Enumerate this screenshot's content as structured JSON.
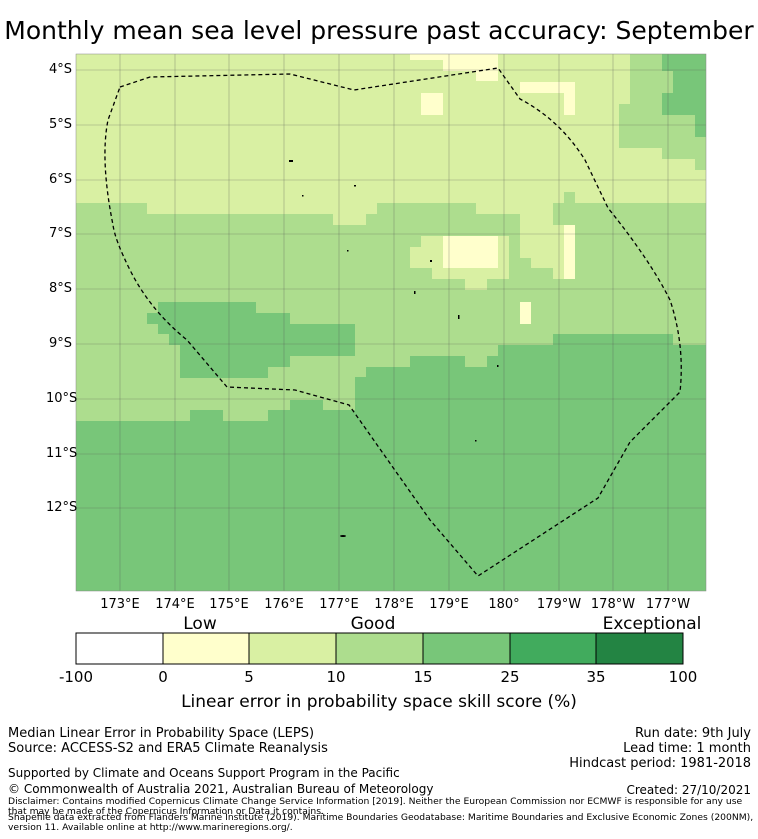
{
  "title": "Monthly mean sea level pressure past accuracy: September",
  "map": {
    "lat_labels": [
      "4°S",
      "5°S",
      "6°S",
      "7°S",
      "8°S",
      "9°S",
      "10°S",
      "11°S",
      "12°S"
    ],
    "lon_labels": [
      "173°E",
      "174°E",
      "175°E",
      "176°E",
      "177°E",
      "178°E",
      "179°E",
      "180°",
      "179°W",
      "178°W",
      "177°W"
    ],
    "region_outline": "dashed",
    "gridlines": true
  },
  "colorbar": {
    "category_labels": [
      "Low",
      "Good",
      "Exceptional"
    ],
    "ticks": [
      "-100",
      "0",
      "5",
      "10",
      "15",
      "25",
      "35",
      "100"
    ],
    "colors": [
      "#ffffff",
      "#ffffcc",
      "#d9f0a3",
      "#addd8e",
      "#78c679",
      "#41ab5d",
      "#238443"
    ],
    "title": "Linear error in probability space skill score (%)"
  },
  "info": {
    "method": "Median Linear Error in Probability Space (LEPS)",
    "source": "Source: ACCESS-S2 and ERA5 Climate Reanalysis",
    "run_date": "Run date: 9th July",
    "lead_time": "Lead time: 1 month",
    "hindcast": "Hindcast period: 1981-2018",
    "support": "Supported by Climate and Oceans Support Program in the Pacific",
    "copyright": "© Commonwealth of Australia 2021, Australian Bureau of Meteorology",
    "created": "Created: 27/10/2021",
    "disclaimer": "Disclaimer: Contains modified Copernicus Climate Change Service Information [2019]. Neither the European Commission nor ECMWF is responsible for any use that may be made of the Copernicus Information or Data it contains.",
    "shapefile": "Shapefile data extracted from Flanders Marine Institute (2019). Maritime Boundaries Geodatabase: Maritime Boundaries and Exclusive Economic Zones (200NM), version 11. Available online at http://www.marineregions.org/."
  }
}
